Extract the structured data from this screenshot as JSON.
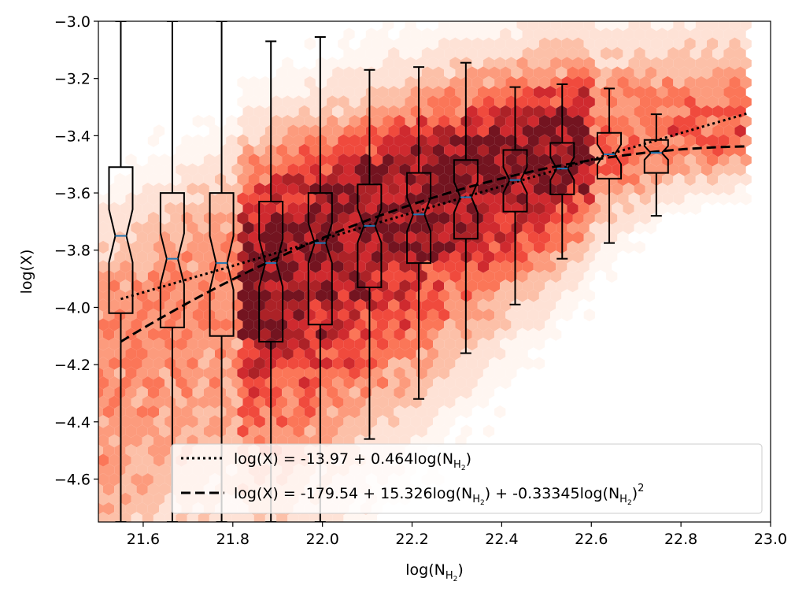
{
  "chart_data": {
    "type": "scatter",
    "title": "",
    "xlabel": "log(N",
    "xlabel_sub": "H",
    "xlabel_subsub": "2",
    "xlabel_end": ")",
    "ylabel": "log(X)",
    "xlim": [
      21.5,
      23.0
    ],
    "ylim": [
      -4.75,
      -3.0
    ],
    "xticks": [
      21.6,
      21.8,
      22.0,
      22.2,
      22.4,
      22.6,
      22.8,
      23.0
    ],
    "xtick_labels": [
      "21.6",
      "21.8",
      "22.0",
      "22.2",
      "22.4",
      "22.6",
      "22.8",
      "23.0"
    ],
    "yticks": [
      -3.0,
      -3.2,
      -3.4,
      -3.6,
      -3.8,
      -4.0,
      -4.2,
      -4.4,
      -4.6
    ],
    "ytick_labels": [
      "−3.0",
      "−3.2",
      "−3.4",
      "−3.6",
      "−3.8",
      "−4.0",
      "−4.2",
      "−4.4",
      "−4.6"
    ],
    "grid": false,
    "colors": {
      "hexbin": "Reds",
      "box_edge": "#000000",
      "median": "#1f77b4"
    },
    "hexbin_density": {
      "description_values": "approximate density field of log(N_H2) vs log(X)",
      "x_range": [
        21.5,
        22.95
      ],
      "y_range": [
        -4.75,
        -3.0
      ]
    },
    "boxes": [
      {
        "x": 21.55,
        "whisker_low": -4.75,
        "q1": -4.02,
        "median": -3.75,
        "q3": -3.51,
        "whisker_high": -3.0
      },
      {
        "x": 21.665,
        "whisker_low": -4.75,
        "q1": -4.07,
        "median": -3.83,
        "q3": -3.6,
        "whisker_high": -3.0
      },
      {
        "x": 21.775,
        "whisker_low": -4.75,
        "q1": -4.1,
        "median": -3.845,
        "q3": -3.6,
        "whisker_high": -3.0
      },
      {
        "x": 21.885,
        "whisker_low": -4.75,
        "q1": -4.12,
        "median": -3.845,
        "q3": -3.63,
        "whisker_high": -3.07
      },
      {
        "x": 21.995,
        "whisker_low": -4.75,
        "q1": -4.06,
        "median": -3.775,
        "q3": -3.6,
        "whisker_high": -3.055
      },
      {
        "x": 22.105,
        "whisker_low": -4.46,
        "q1": -3.93,
        "median": -3.715,
        "q3": -3.57,
        "whisker_high": -3.17
      },
      {
        "x": 22.215,
        "whisker_low": -4.32,
        "q1": -3.845,
        "median": -3.675,
        "q3": -3.53,
        "whisker_high": -3.16
      },
      {
        "x": 22.32,
        "whisker_low": -4.16,
        "q1": -3.76,
        "median": -3.615,
        "q3": -3.485,
        "whisker_high": -3.145
      },
      {
        "x": 22.43,
        "whisker_low": -3.99,
        "q1": -3.665,
        "median": -3.555,
        "q3": -3.45,
        "whisker_high": -3.23
      },
      {
        "x": 22.535,
        "whisker_low": -3.83,
        "q1": -3.605,
        "median": -3.515,
        "q3": -3.425,
        "whisker_high": -3.22
      },
      {
        "x": 22.64,
        "whisker_low": -3.775,
        "q1": -3.55,
        "median": -3.465,
        "q3": -3.39,
        "whisker_high": -3.235
      },
      {
        "x": 22.745,
        "whisker_low": -3.68,
        "q1": -3.53,
        "median": -3.46,
        "q3": -3.415,
        "whisker_high": -3.325
      }
    ],
    "series": [
      {
        "name": "log(X) = -13.97 + 0.464log(N",
        "name_sub": "H",
        "name_subsub": "2",
        "name_end": ")",
        "style": "dotted",
        "fit": {
          "a": -13.97,
          "b": 0.464
        },
        "x_range": [
          21.55,
          22.95
        ]
      },
      {
        "name": "log(X) = -179.54 + 15.326log(N",
        "name_sub": "H",
        "name_subsub": "2",
        "name_mid": ") + -0.33345log(N",
        "name_sub2": "H",
        "name_subsub2": "2",
        "name_end": ")",
        "name_sup": "2",
        "style": "dashed",
        "fit": {
          "a": -179.54,
          "b": 15.326,
          "c": -0.33345
        },
        "x_range": [
          21.55,
          22.95
        ]
      }
    ],
    "legend_position": "lower-right"
  }
}
